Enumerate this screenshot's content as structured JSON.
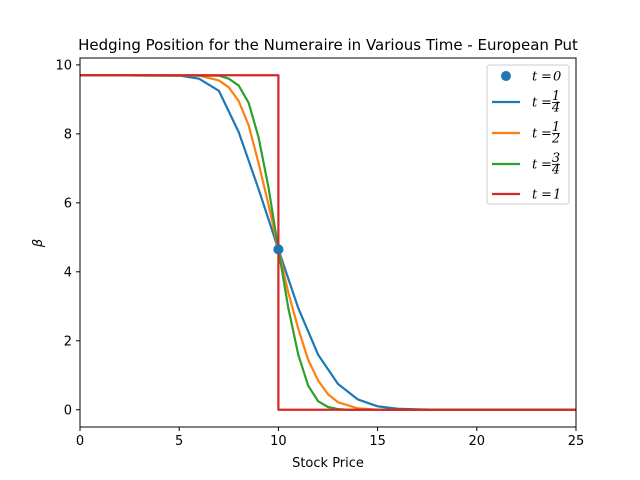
{
  "chart_data": {
    "type": "line",
    "title": "Hedging Position for the Numeraire in Various Time - European Put",
    "xlabel": "Stock Price",
    "ylabel": "β",
    "xlim": [
      0,
      25
    ],
    "ylim": [
      -0.5,
      10.2
    ],
    "xticks": [
      0,
      5,
      10,
      15,
      20,
      25
    ],
    "yticks": [
      0,
      2,
      4,
      6,
      8,
      10
    ],
    "grid": false,
    "legend_position": "top-right",
    "strike": 10,
    "max_value": 9.7,
    "series": [
      {
        "name": "t = 0",
        "kind": "point",
        "color": "#1f77b4",
        "x": [
          10
        ],
        "y": [
          4.65
        ]
      },
      {
        "name": "t = 1/4",
        "kind": "line",
        "color": "#1f77b4",
        "x": [
          0,
          5,
          6,
          7,
          8,
          9,
          10,
          11,
          12,
          13,
          14,
          15,
          16,
          17,
          18,
          25
        ],
        "y": [
          9.7,
          9.69,
          9.6,
          9.25,
          8.05,
          6.4,
          4.65,
          2.95,
          1.6,
          0.75,
          0.3,
          0.1,
          0.03,
          0.01,
          0,
          0
        ]
      },
      {
        "name": "t = 1/2",
        "kind": "line",
        "color": "#ff7f0e",
        "x": [
          0,
          6,
          7,
          7.5,
          8,
          8.5,
          9,
          9.5,
          10,
          10.5,
          11,
          11.5,
          12,
          12.5,
          13,
          14,
          15,
          25
        ],
        "y": [
          9.7,
          9.69,
          9.55,
          9.35,
          8.95,
          8.25,
          7.15,
          5.95,
          4.65,
          3.4,
          2.35,
          1.45,
          0.85,
          0.45,
          0.22,
          0.04,
          0,
          0
        ]
      },
      {
        "name": "t = 3/4",
        "kind": "line",
        "color": "#2ca02c",
        "x": [
          0,
          7,
          7.5,
          8,
          8.5,
          9,
          9.5,
          10,
          10.5,
          11,
          11.5,
          12,
          12.5,
          13,
          13.5,
          25
        ],
        "y": [
          9.7,
          9.69,
          9.6,
          9.4,
          8.9,
          7.9,
          6.45,
          4.65,
          2.95,
          1.6,
          0.7,
          0.25,
          0.08,
          0.02,
          0,
          0
        ]
      },
      {
        "name": "t = 1",
        "kind": "step",
        "color": "#d62728",
        "x": [
          0,
          10,
          10,
          25
        ],
        "y": [
          9.7,
          9.7,
          0,
          0
        ]
      }
    ],
    "legend": [
      {
        "t": "t",
        "eq": "=",
        "num": "",
        "den": "",
        "whole": "0"
      },
      {
        "t": "t",
        "eq": "=",
        "num": "1",
        "den": "4",
        "whole": ""
      },
      {
        "t": "t",
        "eq": "=",
        "num": "1",
        "den": "2",
        "whole": ""
      },
      {
        "t": "t",
        "eq": "=",
        "num": "3",
        "den": "4",
        "whole": ""
      },
      {
        "t": "t",
        "eq": "=",
        "num": "",
        "den": "",
        "whole": "1"
      }
    ]
  }
}
